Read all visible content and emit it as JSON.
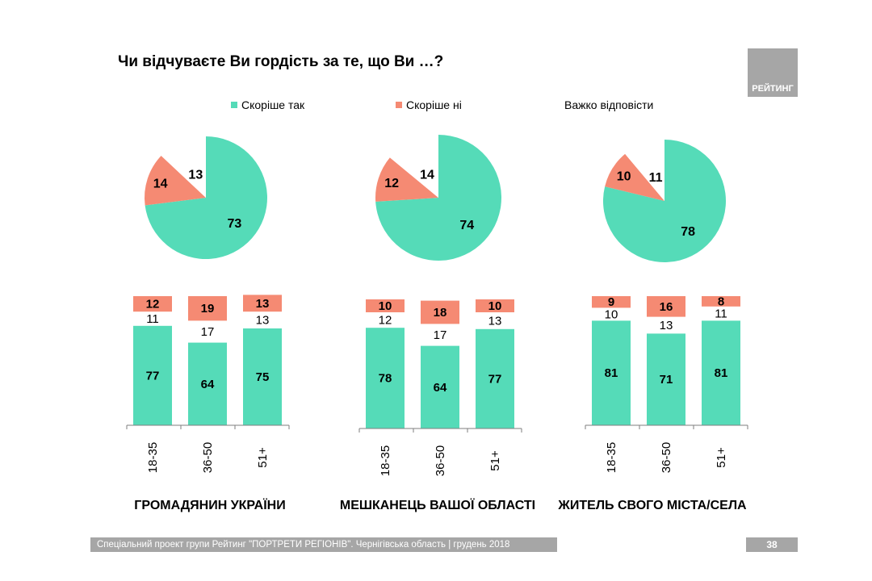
{
  "title": "Чи відчуваєте Ви гордість за те, що Ви …?",
  "logo": "РЕЙТИНГ",
  "legend": [
    {
      "label": "Скоріше так",
      "color": "#55dbb8"
    },
    {
      "label": "Скоріше ні",
      "color": "#f58a73"
    },
    {
      "label": "Важко відповісти",
      "color": "#ffffff"
    }
  ],
  "colors": {
    "yes": "#55dbb8",
    "no": "#f58a73",
    "hard": "#ffffff",
    "footer": "#a6a6a6"
  },
  "chart_data": [
    {
      "type": "pie",
      "group": "ГРОМАДЯНИН УКРАЇНИ",
      "slices": [
        {
          "name": "Скоріше так",
          "value": 73
        },
        {
          "name": "Скоріше ні",
          "value": 14
        },
        {
          "name": "Важко відповісти",
          "value": 13
        }
      ]
    },
    {
      "type": "pie",
      "group": "МЕШКАНЕЦЬ ВАШОЇ ОБЛАСТІ",
      "slices": [
        {
          "name": "Скоріше так",
          "value": 74
        },
        {
          "name": "Скоріше ні",
          "value": 12
        },
        {
          "name": "Важко відповісти",
          "value": 14
        }
      ]
    },
    {
      "type": "pie",
      "group": "ЖИТЕЛЬ СВОГО МІСТА/СЕЛА",
      "slices": [
        {
          "name": "Скоріше так",
          "value": 78
        },
        {
          "name": "Скоріше ні",
          "value": 10
        },
        {
          "name": "Важко відповісти",
          "value": 11
        }
      ]
    },
    {
      "type": "bar",
      "stacked": true,
      "group": "ГРОМАДЯНИН УКРАЇНИ",
      "categories": [
        "18-35",
        "36-50",
        "51+"
      ],
      "series": [
        {
          "name": "Скоріше так",
          "values": [
            77,
            64,
            75
          ]
        },
        {
          "name": "Важко відповісти",
          "values": [
            11,
            17,
            13
          ]
        },
        {
          "name": "Скоріше ні",
          "values": [
            12,
            19,
            13
          ]
        }
      ]
    },
    {
      "type": "bar",
      "stacked": true,
      "group": "МЕШКАНЕЦЬ ВАШОЇ ОБЛАСТІ",
      "categories": [
        "18-35",
        "36-50",
        "51+"
      ],
      "series": [
        {
          "name": "Скоріше так",
          "values": [
            78,
            64,
            77
          ]
        },
        {
          "name": "Важко відповісти",
          "values": [
            12,
            17,
            13
          ]
        },
        {
          "name": "Скоріше ні",
          "values": [
            10,
            18,
            10
          ]
        }
      ]
    },
    {
      "type": "bar",
      "stacked": true,
      "group": "ЖИТЕЛЬ СВОГО МІСТА/СЕЛА",
      "categories": [
        "18-35",
        "36-50",
        "51+"
      ],
      "series": [
        {
          "name": "Скоріше так",
          "values": [
            81,
            71,
            81
          ]
        },
        {
          "name": "Важко відповісти",
          "values": [
            10,
            13,
            11
          ]
        },
        {
          "name": "Скоріше ні",
          "values": [
            9,
            16,
            8
          ]
        }
      ]
    }
  ],
  "groups": [
    "ГРОМАДЯНИН УКРАЇНИ",
    "МЕШКАНЕЦЬ ВАШОЇ ОБЛАСТІ",
    "ЖИТЕЛЬ СВОГО МІСТА/СЕЛА"
  ],
  "footer": "Спеціальний проект групи Рейтинг \"ПОРТРЕТИ РЕГІОНІВ\". Чернігівська область | грудень 2018",
  "page_number": "38"
}
